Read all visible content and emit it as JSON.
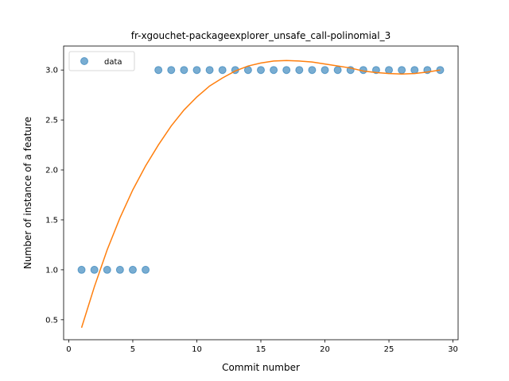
{
  "chart_data": {
    "type": "scatter",
    "title": "fr-xgouchet-packageexplorer_unsafe_call-polinomial_3",
    "xlabel": "Commit number",
    "ylabel": "Number of instance of a feature",
    "xlim": [
      -0.4,
      30.4
    ],
    "ylim": [
      0.3,
      3.24
    ],
    "xticks": [
      0,
      5,
      10,
      15,
      20,
      25,
      30
    ],
    "yticks": [
      0.5,
      1.0,
      1.5,
      2.0,
      2.5,
      3.0
    ],
    "xtick_labels": [
      "0",
      "5",
      "10",
      "15",
      "20",
      "25",
      "30"
    ],
    "ytick_labels": [
      "0.5",
      "1.0",
      "1.5",
      "2.0",
      "2.5",
      "3.0"
    ],
    "grid": false,
    "legend": {
      "position": "top-left",
      "entries": [
        "data"
      ]
    },
    "series": [
      {
        "name": "data",
        "kind": "scatter",
        "color": "#1f77b4",
        "x": [
          1,
          2,
          3,
          4,
          5,
          6,
          7,
          8,
          9,
          10,
          11,
          12,
          13,
          14,
          15,
          16,
          17,
          18,
          19,
          20,
          21,
          22,
          23,
          24,
          25,
          26,
          27,
          28,
          29
        ],
        "y": [
          1,
          1,
          1,
          1,
          1,
          1,
          3,
          3,
          3,
          3,
          3,
          3,
          3,
          3,
          3,
          3,
          3,
          3,
          3,
          3,
          3,
          3,
          3,
          3,
          3,
          3,
          3,
          3,
          3
        ]
      },
      {
        "kind": "line",
        "color": "#ff7f0e",
        "x": [
          1,
          2,
          3,
          4,
          5,
          6,
          7,
          8,
          9,
          10,
          11,
          12,
          13,
          14,
          15,
          16,
          17,
          18,
          19,
          20,
          21,
          22,
          23,
          24,
          25,
          26,
          27,
          28,
          29
        ],
        "y": [
          0.42,
          0.83,
          1.2,
          1.52,
          1.8,
          2.04,
          2.25,
          2.44,
          2.6,
          2.73,
          2.84,
          2.92,
          2.99,
          3.04,
          3.07,
          3.09,
          3.095,
          3.09,
          3.08,
          3.06,
          3.04,
          3.02,
          2.99,
          2.975,
          2.965,
          2.96,
          2.965,
          2.98,
          3.0
        ]
      }
    ]
  }
}
